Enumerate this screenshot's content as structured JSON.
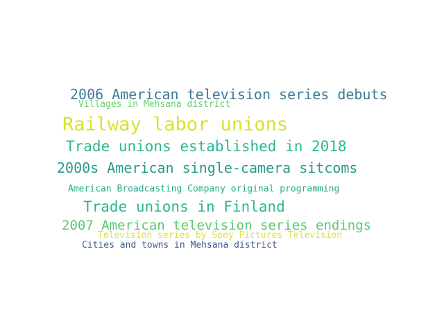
{
  "words": [
    {
      "text": "2006 American television series debuts",
      "color": "#3b7a96"
    },
    {
      "text": "Villages in Mehsana district",
      "color": "#6ccf6c"
    },
    {
      "text": "Railway labor unions",
      "color": "#d8e22a"
    },
    {
      "text": "Trade unions established in 2018",
      "color": "#2db694"
    },
    {
      "text": "2000s American single-camera sitcoms",
      "color": "#279a8a"
    },
    {
      "text": "American Broadcasting Company original programming",
      "color": "#25a88b"
    },
    {
      "text": "Trade unions in Finland",
      "color": "#2fb58a"
    },
    {
      "text": "2007 American television series endings",
      "color": "#57c96c"
    },
    {
      "text": "Television series by Sony Pictures Television",
      "color": "#dde23a"
    },
    {
      "text": "Cities and towns in Mehsana district",
      "color": "#3d5a91"
    }
  ]
}
